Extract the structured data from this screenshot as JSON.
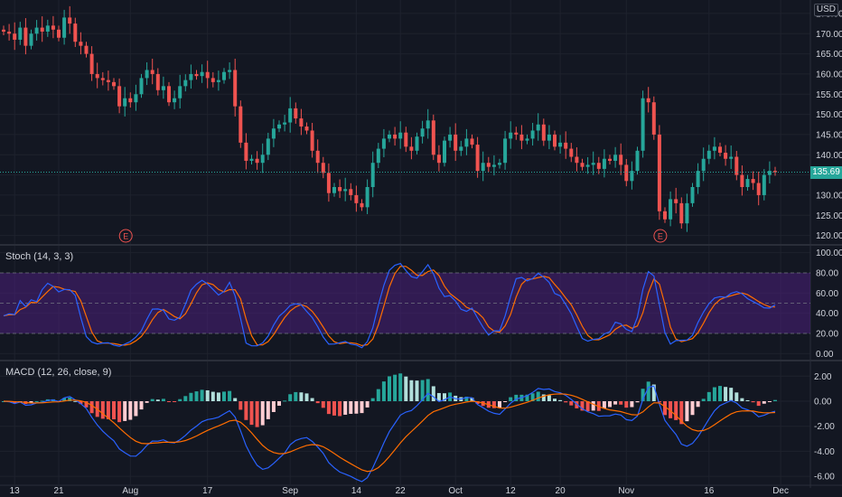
{
  "currency_label": "USD",
  "last_price_label": "135.69",
  "stoch_title": "Stoch (14, 3, 3)",
  "macd_title": "MACD (12, 26, close, 9)",
  "earnings_marker": "E",
  "colors": {
    "background": "#131722",
    "up": "#26a69a",
    "down": "#ef5350",
    "stoch_k": "#2962ff",
    "stoch_d": "#ff6d00",
    "stoch_band": "#4a1f7a",
    "macd_line": "#2962ff",
    "signal_line": "#ff6d00",
    "hist_up_strong": "#26a69a",
    "hist_up_weak": "#b2dfdb",
    "hist_down_strong": "#ef5350",
    "hist_down_weak": "#ffcdd2"
  },
  "chart_data": [
    {
      "type": "candlestick",
      "title": "",
      "y_ticks": [
        "120.00",
        "125.00",
        "130.00",
        "135.00",
        "140.00",
        "145.00",
        "150.00",
        "155.00",
        "160.00",
        "165.00",
        "170.00",
        "175.00"
      ],
      "ylim": [
        117,
        177
      ],
      "last_price": 135.69,
      "x_ticks": [
        "13",
        "21",
        "Aug",
        "17",
        "Sep",
        "14",
        "22",
        "Oct",
        "12",
        "20",
        "Nov",
        "16",
        "Dec"
      ],
      "earnings_events": [
        "Aug",
        "Nov"
      ],
      "close": [
        170.5,
        170.0,
        168.5,
        171.5,
        167.0,
        170.0,
        171.5,
        170.5,
        172.0,
        171.0,
        169.0,
        174.0,
        172.5,
        168.0,
        167.0,
        165.0,
        160.0,
        159.0,
        158.5,
        158.0,
        157.0,
        152.0,
        154.0,
        153.0,
        155.0,
        159.0,
        161.0,
        160.0,
        156.0,
        157.0,
        153.0,
        154.0,
        157.0,
        158.5,
        160.0,
        159.5,
        160.5,
        159.0,
        158.0,
        158.5,
        160.5,
        161.0,
        152.0,
        143.0,
        138.5,
        139.0,
        138.0,
        140.0,
        144.0,
        146.5,
        147.5,
        148.0,
        151.5,
        149.0,
        147.0,
        146.0,
        141.0,
        138.0,
        135.5,
        130.5,
        132.0,
        131.0,
        131.5,
        130.0,
        128.0,
        127.0,
        132.0,
        138.0,
        141.5,
        144.0,
        145.0,
        144.0,
        145.5,
        142.0,
        141.0,
        144.5,
        146.5,
        148.5,
        140.0,
        138.0,
        143.5,
        145.0,
        141.0,
        142.0,
        144.0,
        142.5,
        136.0,
        138.0,
        137.0,
        137.5,
        138.0,
        144.0,
        145.5,
        145.0,
        143.5,
        144.0,
        146.0,
        147.5,
        143.5,
        145.0,
        142.0,
        143.0,
        141.5,
        139.5,
        138.0,
        137.0,
        137.5,
        138.0,
        136.5,
        139.0,
        138.5,
        140.0,
        137.5,
        133.5,
        136.0,
        141.0,
        154.0,
        153.0,
        145.0,
        126.0,
        124.0,
        129.0,
        128.0,
        123.0,
        128.0,
        132.0,
        136.0,
        139.0,
        141.0,
        142.0,
        140.5,
        139.0,
        139.5,
        135.0,
        132.0,
        134.0,
        133.0,
        130.0,
        135.0,
        136.0,
        135.69
      ],
      "stoch_ylim": [
        0,
        100
      ],
      "stoch_ticks": [
        "0.00",
        "20.00",
        "40.00",
        "60.00",
        "80.00",
        "100.00"
      ],
      "stoch_band": [
        20,
        80
      ],
      "macd_ylim": [
        -6,
        2.3
      ],
      "macd_ticks": [
        "-6.00",
        "-4.00",
        "-2.00",
        "0.00",
        "2.00"
      ]
    }
  ]
}
